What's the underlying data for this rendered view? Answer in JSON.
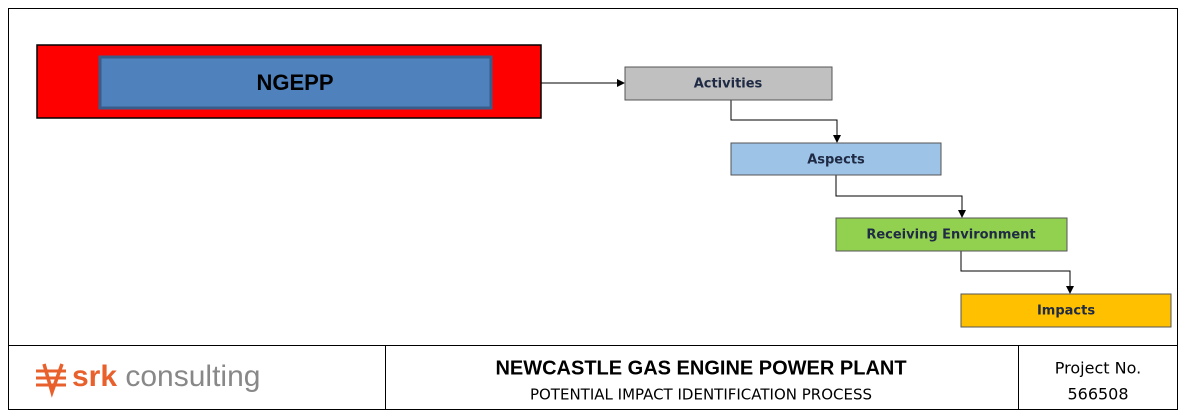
{
  "source": {
    "label": "NGEPP"
  },
  "nodes": [
    {
      "label": "Activities"
    },
    {
      "label": "Aspects"
    },
    {
      "label": "Receiving Environment"
    },
    {
      "label": "Impacts"
    }
  ],
  "footer": {
    "logo": {
      "brand": "srk",
      "suffix": "consulting"
    },
    "title": "NEWCASTLE GAS ENGINE POWER PLANT",
    "subtitle": "POTENTIAL IMPACT IDENTIFICATION PROCESS",
    "project_label": "Project No.",
    "project_number": "566508"
  }
}
